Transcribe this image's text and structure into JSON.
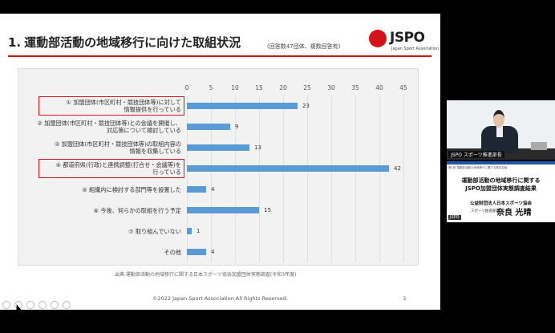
{
  "slide": {
    "title_num": "1.",
    "title": "運動部活動の地域移行に向けた取組状況",
    "subtitle": "(回答数47団体、複数回答有)",
    "logo_word": "JSPO",
    "logo_tag": "Japan Sport Association",
    "source": "出典:運動部活動の地域移行に関する日本スポーツ協会加盟団体実態調査(令和3年度)",
    "copyright": "©2022 Japan Sport Association All Rights Reserved.",
    "page": "3"
  },
  "chart_data": {
    "type": "bar",
    "orientation": "horizontal",
    "categories": [
      "① 加盟団体(市区町村・競技団体等)に対して\n情報提供を行っている",
      "② 加盟団体(市区町村・競技団体等)との会議を開催し、\n対応策について検討している",
      "③ 加盟団体(市区町村・競技団体等)の取組内容の\n情報を収集している",
      "④ 都道府県(行政)と連携調整(打合せ・会議等)を\n行っている",
      "⑤ 組織内に検討する部門等を設置した",
      "⑥ 今後、何らかの取組を行う予定",
      "⑦ 取り組んでいない",
      "その他"
    ],
    "values": [
      23,
      9,
      13,
      42,
      4,
      15,
      1,
      4
    ],
    "xlim": [
      0,
      45
    ],
    "xticks": [
      0,
      5,
      10,
      15,
      20,
      25,
      30,
      35,
      40,
      45
    ],
    "highlighted": [
      0,
      3
    ],
    "bar_color": "#5b9bd5",
    "highlight_color": "#d3121b"
  },
  "video": {
    "name_label": "JSPO スポーツ推進部長"
  },
  "slide2": {
    "small": "第1回 運動部活動の地域移行に関する検討会議",
    "line1": "運動部活動の地域移行に関する",
    "line2": "JSPO加盟団体実態調査結果",
    "org": "公益財団法人日本スポーツ協会",
    "title_small": "スポーツ推進部長",
    "name": "奈良 光晴",
    "foot": "JSPO"
  }
}
